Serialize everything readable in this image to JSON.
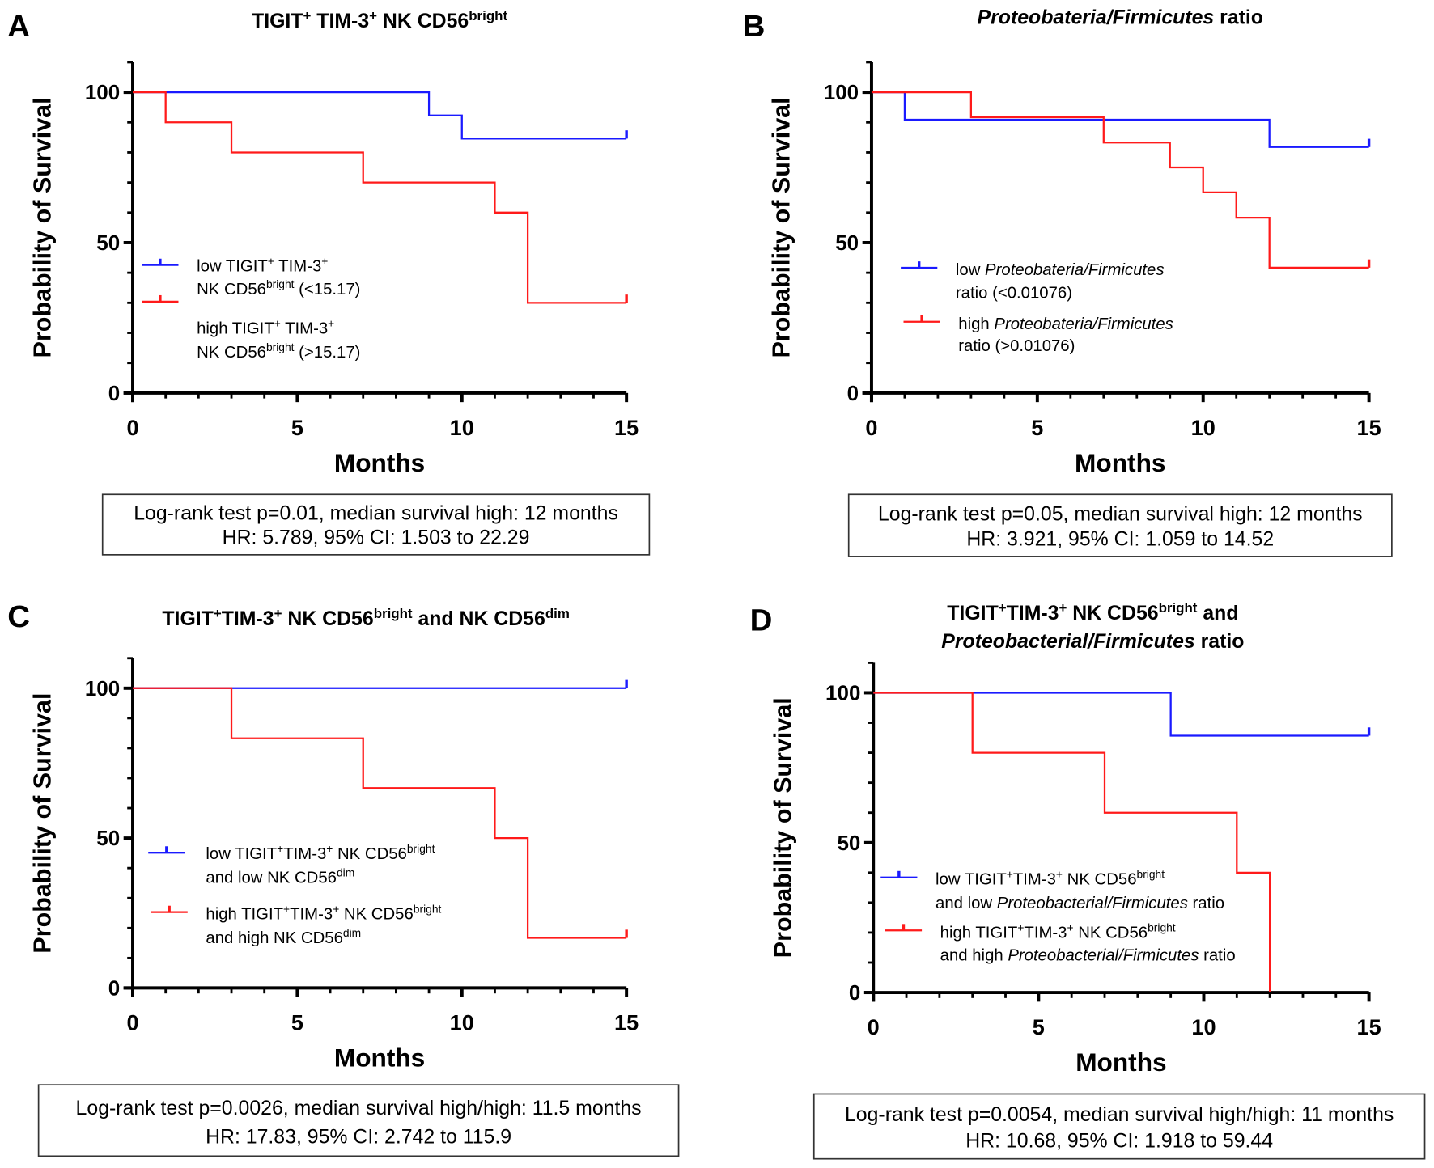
{
  "colors": {
    "low": "#1a1aff",
    "high": "#ff1a1a",
    "axis": "#000000"
  },
  "chart_data": [
    {
      "type": "line",
      "panel": "A",
      "title": [
        [
          "TIGIT"
        ],
        [
          "+",
          "sup"
        ],
        [
          " TIM-3"
        ],
        [
          "+",
          "sup"
        ],
        [
          " NK CD56"
        ],
        [
          "bright",
          "sup"
        ]
      ],
      "xlabel": "Months",
      "ylabel": "Probability of Survival",
      "xlim": [
        0,
        15
      ],
      "ylim": [
        0,
        110
      ],
      "xticks": [
        0,
        5,
        10,
        15
      ],
      "yticks": [
        0,
        50,
        100
      ],
      "series": [
        {
          "name": "low",
          "color": "#1a1aff",
          "legend": [
            [
              [
                "low TIGIT"
              ],
              [
                "+",
                "sup"
              ],
              [
                " TIM-3"
              ],
              [
                "+",
                "sup"
              ]
            ],
            [
              [
                "NK CD56"
              ],
              [
                "bright",
                "sup"
              ],
              [
                " (<15.17)"
              ]
            ]
          ],
          "steps": [
            [
              0,
              100
            ],
            [
              9,
              92.3
            ],
            [
              10,
              84.6
            ],
            [
              15,
              84.6
            ]
          ]
        },
        {
          "name": "high",
          "color": "#ff1a1a",
          "legend": [
            [
              [
                "high TIGIT"
              ],
              [
                "+",
                "sup"
              ],
              [
                " TIM-3"
              ],
              [
                "+",
                "sup"
              ]
            ],
            [
              [
                "NK CD56"
              ],
              [
                "bright",
                "sup"
              ],
              [
                " (>15.17)"
              ]
            ]
          ],
          "steps": [
            [
              0,
              100
            ],
            [
              1,
              90
            ],
            [
              3,
              80
            ],
            [
              7,
              70
            ],
            [
              11,
              60
            ],
            [
              12,
              30
            ],
            [
              15,
              30
            ]
          ]
        }
      ],
      "stats": [
        "Log-rank test p=0.01, median survival high:  12 months",
        "HR: 5.789, 95% CI: 1.503 to 22.29"
      ]
    },
    {
      "type": "line",
      "panel": "B",
      "title": [
        [
          "Proteobateria/Firmicutes",
          "it"
        ],
        [
          " ratio"
        ]
      ],
      "xlabel": "Months",
      "ylabel": "Probability of Survival",
      "xlim": [
        0,
        15
      ],
      "ylim": [
        0,
        110
      ],
      "xticks": [
        0,
        5,
        10,
        15
      ],
      "yticks": [
        0,
        50,
        100
      ],
      "series": [
        {
          "name": "low",
          "color": "#1a1aff",
          "legend": [
            [
              [
                "low "
              ],
              [
                "Proteobateria/Firmicutes",
                "it"
              ]
            ],
            [
              [
                "ratio (<0.01076)"
              ]
            ]
          ],
          "steps": [
            [
              0,
              100
            ],
            [
              1,
              90.9
            ],
            [
              12,
              81.8
            ],
            [
              15,
              81.8
            ]
          ]
        },
        {
          "name": "high",
          "color": "#ff1a1a",
          "legend": [
            [
              [
                "high "
              ],
              [
                "Proteobateria/Firmicutes",
                "it"
              ]
            ],
            [
              [
                "ratio (>0.01076)"
              ]
            ]
          ],
          "steps": [
            [
              0,
              100
            ],
            [
              3,
              91.7
            ],
            [
              7,
              83.3
            ],
            [
              9,
              75
            ],
            [
              10,
              66.7
            ],
            [
              11,
              58.3
            ],
            [
              12,
              41.7
            ],
            [
              15,
              41.7
            ]
          ]
        }
      ],
      "stats": [
        "Log-rank test p=0.05, median survival high: 12 months",
        "HR: 3.921, 95% CI: 1.059 to 14.52"
      ]
    },
    {
      "type": "line",
      "panel": "C",
      "title": [
        [
          "TIGIT"
        ],
        [
          "+",
          "sup"
        ],
        [
          "TIM-3"
        ],
        [
          "+",
          "sup"
        ],
        [
          " NK CD56"
        ],
        [
          "bright",
          "sup"
        ],
        [
          " and NK CD56"
        ],
        [
          "dim",
          "sup"
        ]
      ],
      "xlabel": "Months",
      "ylabel": "Probability of Survival",
      "xlim": [
        0,
        15
      ],
      "ylim": [
        0,
        110
      ],
      "xticks": [
        0,
        5,
        10,
        15
      ],
      "yticks": [
        0,
        50,
        100
      ],
      "series": [
        {
          "name": "low/low",
          "color": "#1a1aff",
          "legend": [
            [
              [
                "low TIGIT"
              ],
              [
                "+",
                "sup"
              ],
              [
                "TIM-3"
              ],
              [
                "+",
                "sup"
              ],
              [
                " NK CD56"
              ],
              [
                "bright",
                "sup"
              ]
            ],
            [
              [
                "and low NK CD56"
              ],
              [
                "dim",
                "sup"
              ]
            ]
          ],
          "steps": [
            [
              0,
              100
            ],
            [
              15,
              100
            ]
          ]
        },
        {
          "name": "high/high",
          "color": "#ff1a1a",
          "legend": [
            [
              [
                "high TIGIT"
              ],
              [
                "+",
                "sup"
              ],
              [
                "TIM-3"
              ],
              [
                "+",
                "sup"
              ],
              [
                " NK CD56"
              ],
              [
                "bright",
                "sup"
              ]
            ],
            [
              [
                "and high NK CD56"
              ],
              [
                "dim",
                "sup"
              ]
            ]
          ],
          "steps": [
            [
              0,
              100
            ],
            [
              3,
              83.3
            ],
            [
              7,
              66.7
            ],
            [
              11,
              50
            ],
            [
              12,
              16.7
            ],
            [
              15,
              16.7
            ]
          ]
        }
      ],
      "stats": [
        "Log-rank test p=0.0026, median survival high/high: 11.5 months",
        "HR: 17.83, 95% CI: 2.742 to 115.9"
      ]
    },
    {
      "type": "line",
      "panel": "D",
      "title": [
        [
          "TIGIT"
        ],
        [
          "+",
          "sup"
        ],
        [
          "TIM-3"
        ],
        [
          "+",
          "sup"
        ],
        [
          " NK CD56"
        ],
        [
          "bright",
          "sup"
        ],
        [
          " and"
        ]
      ],
      "title2": [
        [
          "Proteobacterial/Firmicutes",
          "it"
        ],
        [
          " ratio"
        ]
      ],
      "xlabel": "Months",
      "ylabel": "Probability of Survival",
      "xlim": [
        0,
        15
      ],
      "ylim": [
        0,
        110
      ],
      "xticks": [
        0,
        5,
        10,
        15
      ],
      "yticks": [
        0,
        50,
        100
      ],
      "series": [
        {
          "name": "low/low",
          "color": "#1a1aff",
          "legend": [
            [
              [
                "low TIGIT"
              ],
              [
                "+",
                "sup"
              ],
              [
                "TIM-3"
              ],
              [
                "+",
                "sup"
              ],
              [
                " NK CD56"
              ],
              [
                "bright",
                "sup"
              ]
            ],
            [
              [
                "and low "
              ],
              [
                "Proteobacterial/Firmicutes",
                "it"
              ],
              [
                " ratio"
              ]
            ]
          ],
          "steps": [
            [
              0,
              100
            ],
            [
              9,
              85.7
            ],
            [
              15,
              85.7
            ]
          ]
        },
        {
          "name": "high/high",
          "color": "#ff1a1a",
          "legend": [
            [
              [
                "high TIGIT"
              ],
              [
                "+",
                "sup"
              ],
              [
                "TIM-3"
              ],
              [
                "+",
                "sup"
              ],
              [
                " NK CD56"
              ],
              [
                "bright",
                "sup"
              ]
            ],
            [
              [
                "and high "
              ],
              [
                "Proteobacterial/Firmicutes",
                "it"
              ],
              [
                " ratio"
              ]
            ]
          ],
          "steps": [
            [
              0,
              100
            ],
            [
              3,
              80
            ],
            [
              7,
              60
            ],
            [
              11,
              40
            ],
            [
              12,
              0
            ]
          ]
        }
      ],
      "stats": [
        "Log-rank test p=0.0054, median survival high/high: 11 months",
        "HR: 10.68, 95% CI: 1.918 to 59.44"
      ]
    }
  ]
}
